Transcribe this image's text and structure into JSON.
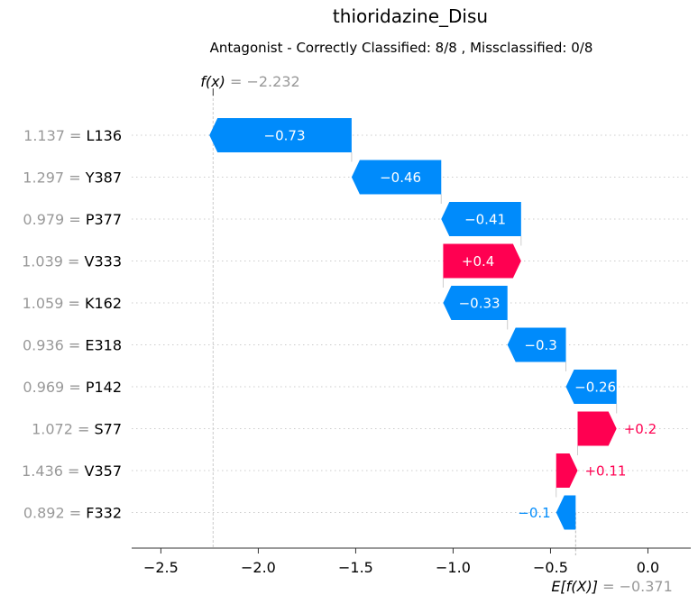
{
  "chart_data": {
    "type": "waterfall",
    "title": "thioridazine_Disu",
    "subtitle": "Antagonist - Correctly Classified: 8/8 , Missclassified: 0/8",
    "fx": {
      "label": "f(x)",
      "eq": "= −2.232",
      "value": -2.232
    },
    "efx": {
      "label": "E[f(X)]",
      "eq": "= −0.371",
      "value": -0.371
    },
    "xlim": [
      -2.65,
      0.22
    ],
    "xticks": [
      {
        "value": -2.5,
        "label": "−2.5"
      },
      {
        "value": -2.0,
        "label": "−2.0"
      },
      {
        "value": -1.5,
        "label": "−1.5"
      },
      {
        "value": -1.0,
        "label": "−1.0"
      },
      {
        "value": -0.5,
        "label": "−0.5"
      },
      {
        "value": 0.0,
        "label": "0.0"
      }
    ],
    "features": [
      {
        "value_text": "1.137 =",
        "name": "L136",
        "contribution": -0.73,
        "label": "−0.73"
      },
      {
        "value_text": "1.297 =",
        "name": "Y387",
        "contribution": -0.46,
        "label": "−0.46"
      },
      {
        "value_text": "0.979 =",
        "name": "P377",
        "contribution": -0.41,
        "label": "−0.41"
      },
      {
        "value_text": "1.039 =",
        "name": "V333",
        "contribution": 0.4,
        "label": "+0.4"
      },
      {
        "value_text": "1.059 =",
        "name": "K162",
        "contribution": -0.33,
        "label": "−0.33"
      },
      {
        "value_text": "0.936 =",
        "name": "E318",
        "contribution": -0.3,
        "label": "−0.3"
      },
      {
        "value_text": "0.969 =",
        "name": "P142",
        "contribution": -0.26,
        "label": "−0.26"
      },
      {
        "value_text": "1.072 =",
        "name": "S77",
        "contribution": 0.2,
        "label": "+0.2"
      },
      {
        "value_text": "1.436 =",
        "name": "V357",
        "contribution": 0.11,
        "label": "+0.11"
      },
      {
        "value_text": "0.892 =",
        "name": "F332",
        "contribution": -0.1,
        "label": "−0.1"
      }
    ],
    "colors": {
      "negative": "#008bfb",
      "positive": "#ff0051",
      "muted": "#999999",
      "grid": "#cccccc"
    }
  }
}
